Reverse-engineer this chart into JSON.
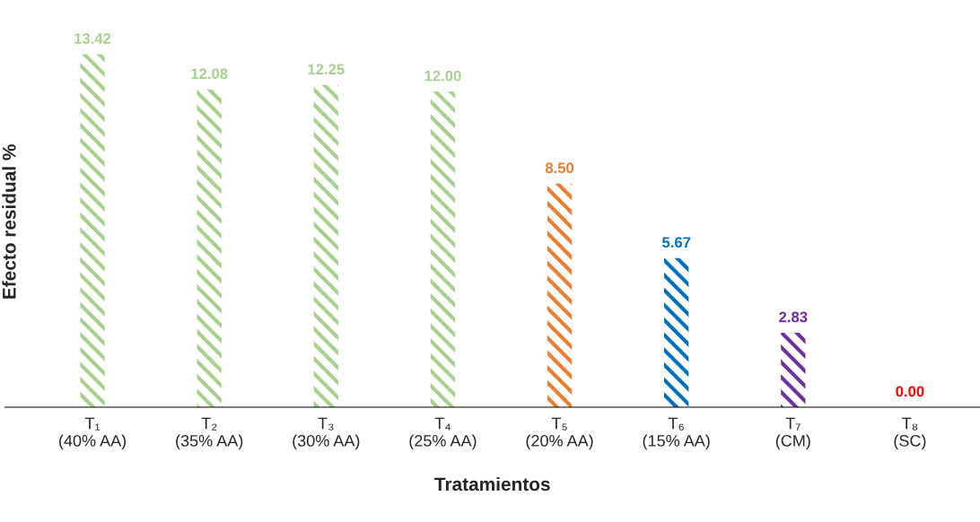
{
  "chart_data": {
    "type": "bar",
    "xlabel": "Tratamientos",
    "ylabel": "Efecto residual %",
    "categories": [
      "T₁\n(40% AA)",
      "T₂\n(35% AA)",
      "T₃\n(30% AA)",
      "T₄\n(25% AA)",
      "T₅\n(20% AA)",
      "T₆\n(15% AA)",
      "T₇\n(CM)",
      "T₈\n(SC)"
    ],
    "values": [
      13.42,
      12.08,
      12.25,
      12.0,
      8.5,
      5.67,
      2.83,
      0.0
    ],
    "value_labels": [
      "13.42",
      "12.08",
      "12.25",
      "12.00",
      "8.50",
      "5.67",
      "2.83",
      "0.00"
    ],
    "colors": [
      "#a9d18e",
      "#a9d18e",
      "#a9d18e",
      "#a9d18e",
      "#ed7d31",
      "#0070c0",
      "#7030a0",
      "#ff0000"
    ],
    "grid": false,
    "legend": false
  }
}
